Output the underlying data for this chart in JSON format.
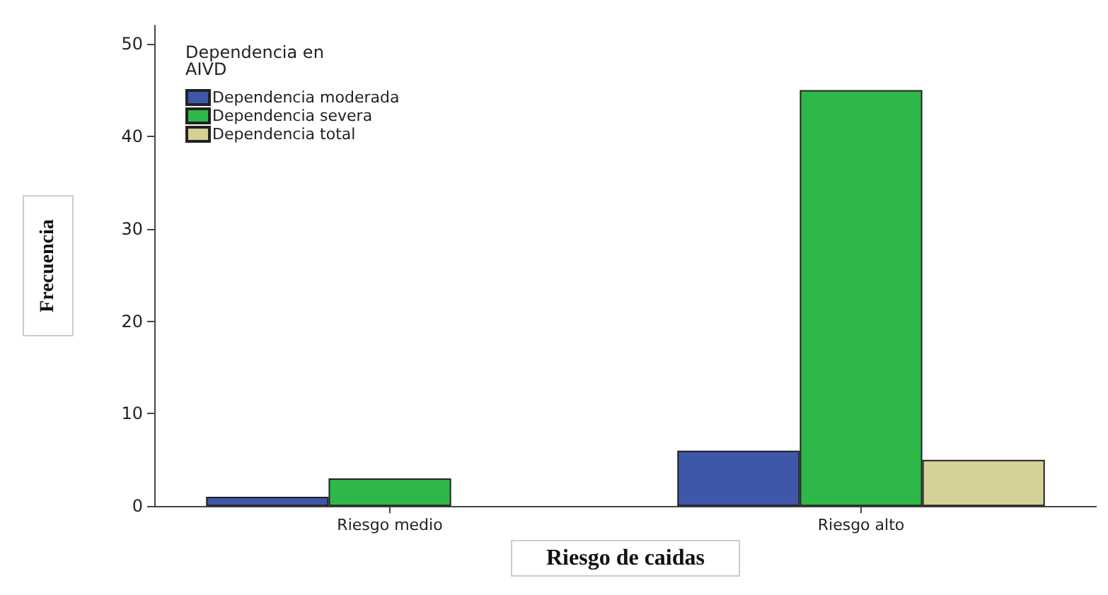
{
  "chart_data": {
    "type": "bar",
    "xlabel": "Riesgo de caidas",
    "ylabel": "Frecuencia",
    "legend_title": "Dependencia en\nAIVD",
    "categories": [
      "Riesgo medio",
      "Riesgo alto"
    ],
    "series": [
      {
        "name": "Dependencia moderada",
        "color": "#3f57a8",
        "values": [
          1,
          6
        ]
      },
      {
        "name": "Dependencia severa",
        "color": "#2fb84a",
        "values": [
          3,
          45
        ]
      },
      {
        "name": "Dependencia total",
        "color": "#d4d098",
        "values": [
          null,
          5
        ]
      }
    ],
    "ylim": [
      0,
      52
    ],
    "yticks": [
      0,
      10,
      20,
      30,
      40,
      50
    ],
    "grid": false,
    "legend": "top left"
  }
}
